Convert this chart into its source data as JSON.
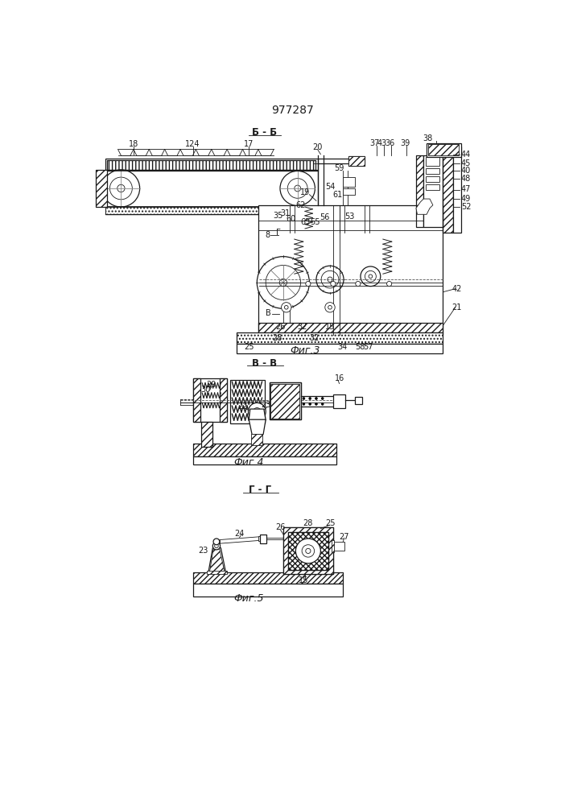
{
  "title": "977287",
  "background_color": "#ffffff",
  "line_color": "#1a1a1a",
  "fig1_label": "Б - Б",
  "fig2_label": "В - В",
  "fig3_label": "Г - Г",
  "fig1_caption": "Фиг.3",
  "fig2_caption": "Фиг.4",
  "fig3_caption": "Фиг.5",
  "title_fontsize": 10,
  "label_fontsize": 8.5,
  "caption_fontsize": 9,
  "number_fontsize": 7
}
